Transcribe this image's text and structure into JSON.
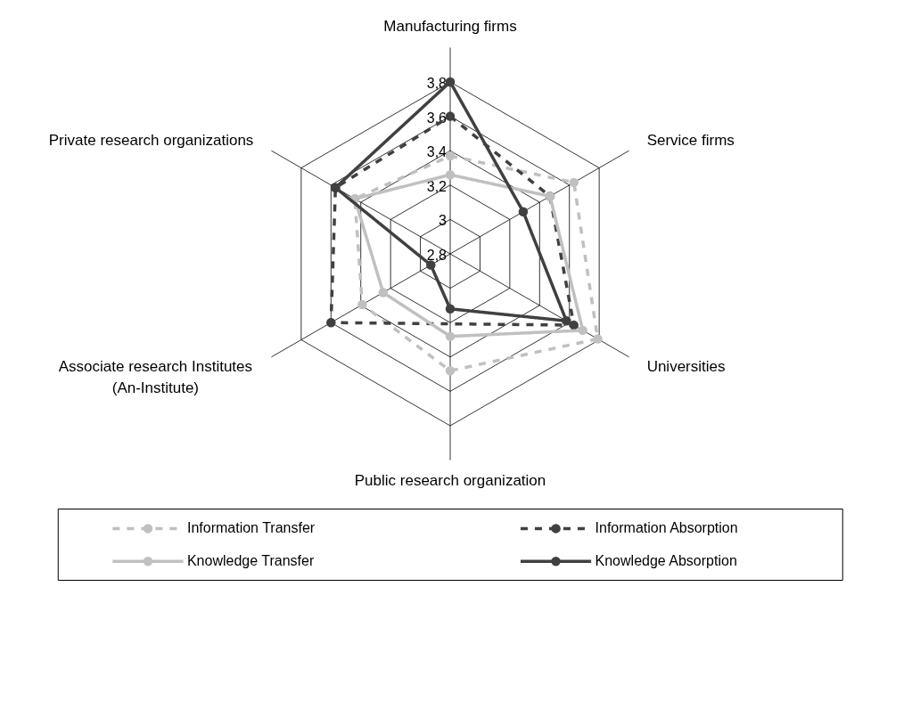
{
  "chart_data": {
    "type": "radar",
    "categories": [
      "Manufacturing firms",
      "Service firms",
      "Universities",
      "Public research organization",
      "Associate research Institutes\n(An-Institute)",
      "Private research organizations"
    ],
    "ylim": [
      2.8,
      3.8
    ],
    "yticks": [
      {
        "value": 2.8,
        "label": "2,8"
      },
      {
        "value": 3.0,
        "label": "3"
      },
      {
        "value": 3.2,
        "label": "3,2"
      },
      {
        "value": 3.4,
        "label": "3,4"
      },
      {
        "value": 3.6,
        "label": "3,6"
      },
      {
        "value": 3.8,
        "label": "3,8"
      }
    ],
    "grid": true,
    "legend": "bottom",
    "marker": "circle",
    "series": [
      {
        "name": "Information Transfer",
        "color": "#c0c0c0",
        "line_style": "dashed",
        "values": [
          3.37,
          3.63,
          3.79,
          3.48,
          3.39,
          3.44
        ]
      },
      {
        "name": "Information  Absorption",
        "color": "#404040",
        "line_style": "dashed",
        "values": [
          3.6,
          3.47,
          3.63,
          null,
          3.6,
          3.57
        ]
      },
      {
        "name": "Knowledge Transfer",
        "color": "#c0c0c0",
        "line_style": "solid",
        "values": [
          3.26,
          3.47,
          3.69,
          3.28,
          3.25,
          3.44
        ]
      },
      {
        "name": "Knowledge Absorption",
        "color": "#404040",
        "line_style": "solid",
        "values": [
          3.8,
          3.29,
          3.58,
          3.12,
          2.93,
          3.57
        ]
      }
    ]
  }
}
